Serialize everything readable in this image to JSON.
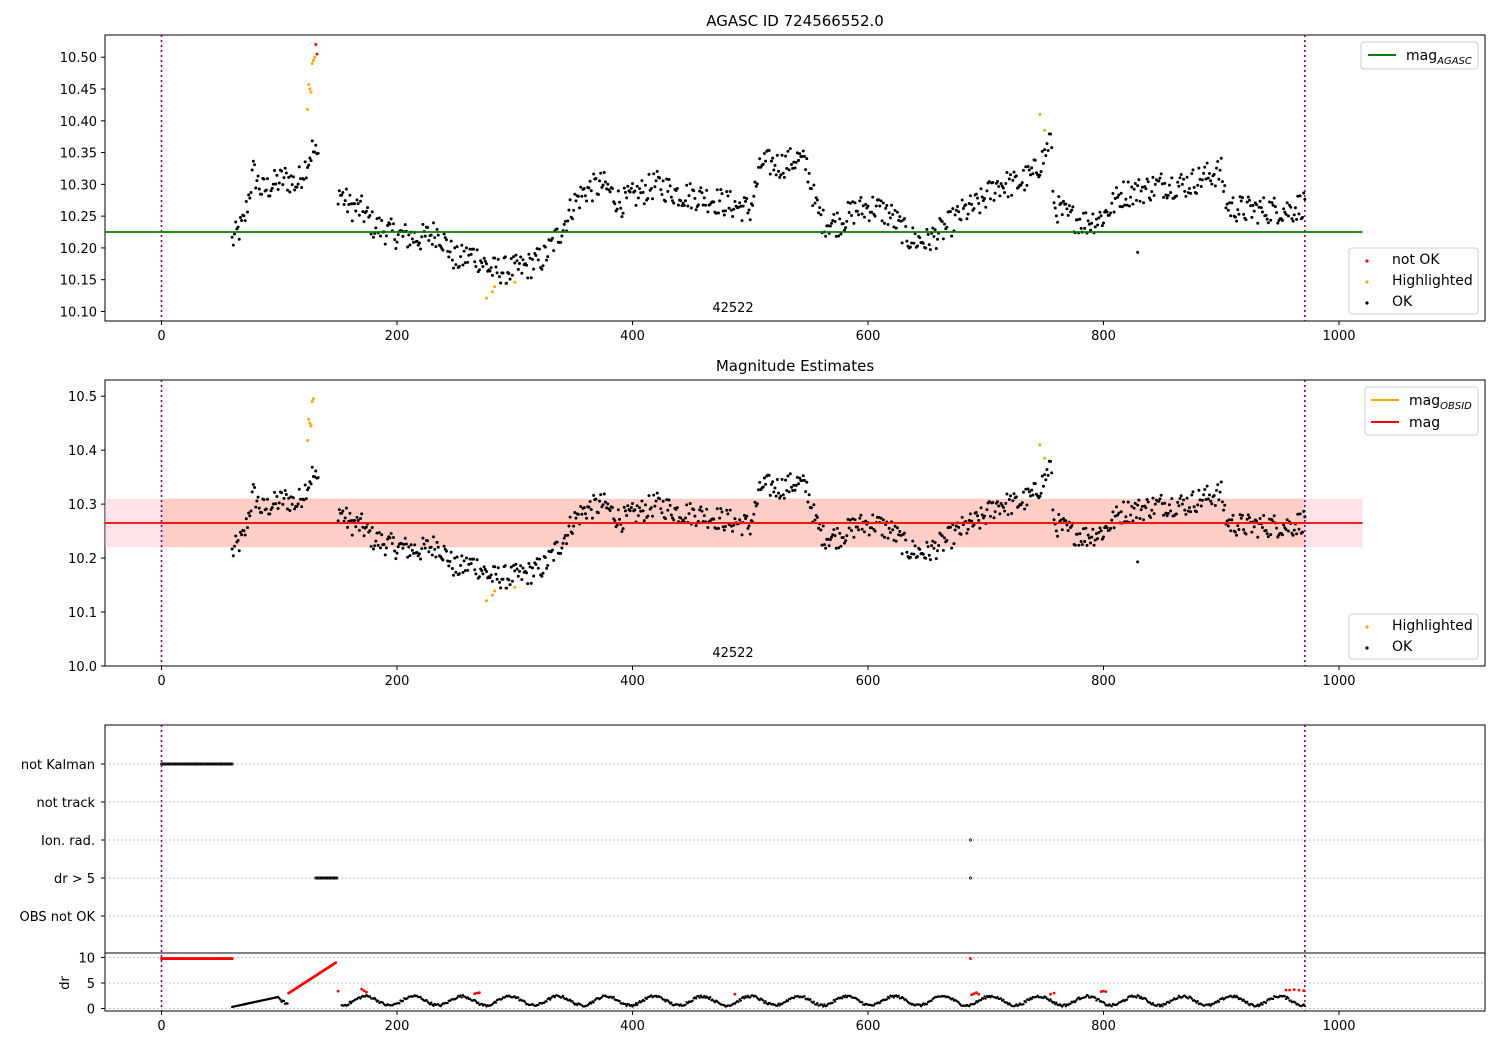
{
  "chart_data": [
    {
      "type": "scatter",
      "title": "AGASC ID 724566552.0",
      "annotation": "42522",
      "xlim": [
        -48,
        1124
      ],
      "ylim": [
        10.085,
        10.535
      ],
      "xticks": [
        0,
        200,
        400,
        600,
        800,
        1000
      ],
      "yticks": [
        10.1,
        10.15,
        10.2,
        10.25,
        10.3,
        10.35,
        10.4,
        10.45,
        10.5
      ],
      "vlines": [
        0,
        971
      ],
      "reference_lines": [
        {
          "name": "mag",
          "subscript": "AGASC",
          "y": 10.225,
          "x_range": [
            -48,
            1020
          ],
          "color": "#008000"
        }
      ],
      "legend_lines": {
        "placement": "upper-right"
      },
      "legend_points": {
        "placement": "lower-right",
        "entries": [
          {
            "name": "not OK",
            "color": "#ff0000"
          },
          {
            "name": "Highlighted",
            "color": "#ffa500"
          },
          {
            "name": "OK",
            "color": "#000000"
          }
        ]
      },
      "series": [
        {
          "name": "not OK",
          "color": "#ff0000",
          "x": [
            131,
            132
          ],
          "y": [
            10.52,
            10.505
          ]
        },
        {
          "name": "Highlighted",
          "color": "#ffa500",
          "x": [
            124,
            125,
            126,
            127,
            128,
            129,
            130,
            276,
            281,
            283,
            292,
            300,
            746,
            750
          ],
          "y": [
            10.418,
            10.457,
            10.45,
            10.445,
            10.49,
            10.495,
            10.5,
            10.121,
            10.131,
            10.139,
            10.144,
            10.146,
            10.41,
            10.385
          ]
        },
        {
          "name": "OK",
          "color": "#000000",
          "profile": [
            [
              60,
              10.21
            ],
            [
              70,
              10.24
            ],
            [
              78,
              10.32
            ],
            [
              85,
              10.29
            ],
            [
              95,
              10.3
            ],
            [
              105,
              10.31
            ],
            [
              115,
              10.3
            ],
            [
              125,
              10.34
            ],
            [
              128,
              10.355
            ],
            [
              150,
              10.29
            ],
            [
              160,
              10.265
            ],
            [
              170,
              10.26
            ],
            [
              180,
              10.235
            ],
            [
              200,
              10.22
            ],
            [
              220,
              10.215
            ],
            [
              235,
              10.225
            ],
            [
              250,
              10.18
            ],
            [
              265,
              10.19
            ],
            [
              280,
              10.165
            ],
            [
              295,
              10.165
            ],
            [
              310,
              10.17
            ],
            [
              325,
              10.185
            ],
            [
              340,
              10.23
            ],
            [
              350,
              10.27
            ],
            [
              360,
              10.29
            ],
            [
              375,
              10.3
            ],
            [
              390,
              10.27
            ],
            [
              400,
              10.28
            ],
            [
              420,
              10.3
            ],
            [
              440,
              10.285
            ],
            [
              460,
              10.28
            ],
            [
              480,
              10.27
            ],
            [
              500,
              10.26
            ],
            [
              510,
              10.335
            ],
            [
              525,
              10.33
            ],
            [
              540,
              10.34
            ],
            [
              548,
              10.33
            ],
            [
              555,
              10.27
            ],
            [
              562,
              10.24
            ],
            [
              575,
              10.24
            ],
            [
              590,
              10.26
            ],
            [
              605,
              10.265
            ],
            [
              620,
              10.25
            ],
            [
              635,
              10.215
            ],
            [
              650,
              10.21
            ],
            [
              665,
              10.23
            ],
            [
              680,
              10.255
            ],
            [
              695,
              10.27
            ],
            [
              710,
              10.3
            ],
            [
              725,
              10.3
            ],
            [
              740,
              10.315
            ],
            [
              750,
              10.345
            ],
            [
              755,
              10.375
            ],
            [
              758,
              10.265
            ],
            [
              770,
              10.25
            ],
            [
              785,
              10.24
            ],
            [
              800,
              10.25
            ],
            [
              815,
              10.285
            ],
            [
              830,
              10.29
            ],
            [
              850,
              10.3
            ],
            [
              870,
              10.3
            ],
            [
              890,
              10.315
            ],
            [
              900,
              10.32
            ],
            [
              905,
              10.265
            ],
            [
              920,
              10.26
            ],
            [
              940,
              10.26
            ],
            [
              960,
              10.26
            ],
            [
              971,
              10.27
            ]
          ],
          "noise": 0.022,
          "x_range": [
            60,
            971
          ],
          "step": 1
        }
      ]
    },
    {
      "type": "scatter",
      "title": "Magnitude Estimates",
      "annotation": "42522",
      "xlim": [
        -48,
        1124
      ],
      "ylim": [
        10.0,
        10.53
      ],
      "xticks": [
        0,
        200,
        400,
        600,
        800,
        1000
      ],
      "yticks": [
        10.0,
        10.1,
        10.2,
        10.3,
        10.4,
        10.5
      ],
      "vlines": [
        0,
        971
      ],
      "bands": [
        {
          "y0": 10.22,
          "y1": 10.31,
          "x_range": [
            -48,
            1020
          ],
          "color": "#ffc0cb",
          "opacity": 0.45
        },
        {
          "y0": 10.22,
          "y1": 10.31,
          "x_range": [
            0,
            971
          ],
          "color": "#ffa07a",
          "opacity": 0.3
        }
      ],
      "reference_lines": [
        {
          "name": "mag",
          "subscript": "OBSID",
          "y": 10.265,
          "x_range": [
            0,
            971
          ],
          "color": "#ffa500"
        },
        {
          "name": "mag",
          "subscript": "",
          "y": 10.265,
          "x_range": [
            -48,
            1020
          ],
          "color": "#ff0000"
        }
      ],
      "legend_lines": {
        "placement": "upper-right"
      },
      "legend_points": {
        "placement": "lower-right",
        "entries": [
          {
            "name": "Highlighted",
            "color": "#ffa500"
          },
          {
            "name": "OK",
            "color": "#000000"
          }
        ]
      },
      "series": [
        {
          "name": "Highlighted",
          "color": "#ffa500",
          "x": [
            124,
            125,
            126,
            127,
            128,
            129,
            276,
            281,
            283,
            292,
            300,
            746,
            750
          ],
          "y": [
            10.418,
            10.457,
            10.45,
            10.445,
            10.49,
            10.495,
            10.121,
            10.131,
            10.139,
            10.144,
            10.146,
            10.41,
            10.385
          ]
        },
        {
          "name": "OK",
          "color": "#000000",
          "same_as": "chart0.OK"
        }
      ]
    },
    {
      "type": "event-flags",
      "xlim": [
        -48,
        1124
      ],
      "xticks": [
        0,
        200,
        400,
        600,
        800,
        1000
      ],
      "vlines": [
        0,
        971
      ],
      "flag_rows": [
        {
          "label": "not Kalman",
          "ranges": [
            [
              0,
              60
            ]
          ],
          "points": []
        },
        {
          "label": "not track",
          "ranges": [],
          "points": []
        },
        {
          "label": "Ion. rad.",
          "ranges": [],
          "points": [
            687
          ]
        },
        {
          "label": "dr > 5",
          "ranges": [
            [
              131,
              149
            ]
          ],
          "points": [
            687
          ]
        },
        {
          "label": "OBS not OK",
          "ranges": [],
          "points": []
        }
      ],
      "dr": {
        "ylabel": "dr",
        "ylim": [
          -0.5,
          10.5
        ],
        "yticks": [
          0,
          5,
          10
        ],
        "flat_red": {
          "x_range": [
            0,
            60
          ],
          "y": 9.8
        },
        "red_ramp": {
          "x_range": [
            108,
            148
          ],
          "y_range": [
            3.0,
            9.0
          ]
        },
        "red_points": {
          "x": [
            150,
            170,
            172,
            174,
            266,
            268,
            270,
            487,
            688,
            690,
            692,
            694,
            755,
            758,
            798,
            800,
            802,
            687,
            955,
            958,
            962,
            966,
            970
          ],
          "y": [
            3.4,
            3.8,
            3.5,
            3.2,
            2.9,
            3.0,
            3.1,
            2.8,
            2.7,
            2.9,
            3.1,
            2.8,
            2.8,
            3.0,
            3.3,
            3.4,
            3.3,
            9.8,
            3.6,
            3.6,
            3.7,
            3.6,
            3.5
          ]
        },
        "black_profile": {
          "x_range": [
            60,
            971
          ],
          "base": 1.5,
          "amplitude": 0.9
        },
        "gap": [
          149,
          152
        ]
      }
    }
  ]
}
